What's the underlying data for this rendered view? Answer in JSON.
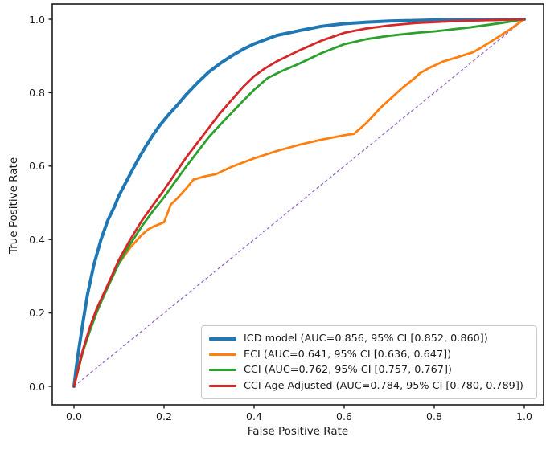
{
  "chart_data": {
    "type": "line",
    "title": "",
    "xlabel": "False Positive Rate",
    "ylabel": "True Positive Rate",
    "xlim": [
      -0.05,
      1.05
    ],
    "ylim": [
      -0.05,
      1.05
    ],
    "grid": false,
    "legend_position": "lower right",
    "x_ticks": [
      0.0,
      0.2,
      0.4,
      0.6,
      0.8,
      1.0
    ],
    "y_ticks": [
      0.0,
      0.2,
      0.4,
      0.6,
      0.8,
      1.0
    ],
    "x_tick_labels": [
      "0.0",
      "0.2",
      "0.4",
      "0.6",
      "0.8",
      "1.0"
    ],
    "y_tick_labels": [
      "0.0",
      "0.2",
      "0.4",
      "0.6",
      "0.8",
      "1.0"
    ],
    "series": [
      {
        "name": "ICD model",
        "label": "ICD model (AUC=0.856, 95% CI [0.852, 0.860])",
        "auc": 0.856,
        "ci": [
          0.852,
          0.86
        ],
        "color": "#1f77b4",
        "line_width": 4,
        "points": [
          [
            0,
            0
          ],
          [
            0.005,
            0.05
          ],
          [
            0.01,
            0.095
          ],
          [
            0.02,
            0.175
          ],
          [
            0.03,
            0.25
          ],
          [
            0.044,
            0.33
          ],
          [
            0.06,
            0.4
          ],
          [
            0.075,
            0.452
          ],
          [
            0.09,
            0.49
          ],
          [
            0.1,
            0.52
          ],
          [
            0.115,
            0.555
          ],
          [
            0.13,
            0.59
          ],
          [
            0.145,
            0.624
          ],
          [
            0.16,
            0.655
          ],
          [
            0.175,
            0.684
          ],
          [
            0.19,
            0.71
          ],
          [
            0.21,
            0.74
          ],
          [
            0.23,
            0.767
          ],
          [
            0.25,
            0.796
          ],
          [
            0.275,
            0.828
          ],
          [
            0.3,
            0.857
          ],
          [
            0.325,
            0.88
          ],
          [
            0.35,
            0.9
          ],
          [
            0.375,
            0.918
          ],
          [
            0.4,
            0.933
          ],
          [
            0.45,
            0.956
          ],
          [
            0.5,
            0.969
          ],
          [
            0.55,
            0.981
          ],
          [
            0.6,
            0.988
          ],
          [
            0.65,
            0.992
          ],
          [
            0.7,
            0.995
          ],
          [
            0.8,
            0.998
          ],
          [
            0.9,
            0.999
          ],
          [
            1,
            1
          ]
        ]
      },
      {
        "name": "ECI",
        "label": "ECI (AUC=0.641, 95% CI [0.636, 0.647])",
        "auc": 0.641,
        "ci": [
          0.636,
          0.647
        ],
        "color": "#ff7f0e",
        "line_width": 2.8,
        "points": [
          [
            0,
            0
          ],
          [
            0.01,
            0.05
          ],
          [
            0.02,
            0.1
          ],
          [
            0.035,
            0.152
          ],
          [
            0.05,
            0.2
          ],
          [
            0.065,
            0.245
          ],
          [
            0.08,
            0.29
          ],
          [
            0.1,
            0.335
          ],
          [
            0.125,
            0.378
          ],
          [
            0.15,
            0.412
          ],
          [
            0.165,
            0.428
          ],
          [
            0.18,
            0.437
          ],
          [
            0.2,
            0.447
          ],
          [
            0.215,
            0.495
          ],
          [
            0.23,
            0.513
          ],
          [
            0.25,
            0.54
          ],
          [
            0.265,
            0.563
          ],
          [
            0.29,
            0.572
          ],
          [
            0.315,
            0.578
          ],
          [
            0.35,
            0.598
          ],
          [
            0.4,
            0.621
          ],
          [
            0.45,
            0.641
          ],
          [
            0.5,
            0.658
          ],
          [
            0.55,
            0.672
          ],
          [
            0.6,
            0.684
          ],
          [
            0.622,
            0.688
          ],
          [
            0.65,
            0.718
          ],
          [
            0.68,
            0.758
          ],
          [
            0.705,
            0.786
          ],
          [
            0.73,
            0.814
          ],
          [
            0.755,
            0.838
          ],
          [
            0.768,
            0.853
          ],
          [
            0.79,
            0.868
          ],
          [
            0.82,
            0.885
          ],
          [
            0.85,
            0.896
          ],
          [
            0.886,
            0.91
          ],
          [
            0.91,
            0.927
          ],
          [
            0.94,
            0.95
          ],
          [
            0.97,
            0.974
          ],
          [
            1,
            1
          ]
        ]
      },
      {
        "name": "CCI",
        "label": "CCI (AUC=0.762, 95% CI [0.757, 0.767])",
        "auc": 0.762,
        "ci": [
          0.757,
          0.767
        ],
        "color": "#2ca02c",
        "line_width": 2.8,
        "points": [
          [
            0,
            0
          ],
          [
            0.01,
            0.048
          ],
          [
            0.02,
            0.095
          ],
          [
            0.035,
            0.15
          ],
          [
            0.05,
            0.2
          ],
          [
            0.065,
            0.243
          ],
          [
            0.08,
            0.283
          ],
          [
            0.1,
            0.335
          ],
          [
            0.125,
            0.388
          ],
          [
            0.15,
            0.435
          ],
          [
            0.175,
            0.477
          ],
          [
            0.2,
            0.515
          ],
          [
            0.225,
            0.558
          ],
          [
            0.25,
            0.6
          ],
          [
            0.275,
            0.64
          ],
          [
            0.3,
            0.68
          ],
          [
            0.325,
            0.713
          ],
          [
            0.35,
            0.745
          ],
          [
            0.375,
            0.777
          ],
          [
            0.4,
            0.808
          ],
          [
            0.43,
            0.84
          ],
          [
            0.46,
            0.858
          ],
          [
            0.5,
            0.879
          ],
          [
            0.55,
            0.908
          ],
          [
            0.6,
            0.932
          ],
          [
            0.65,
            0.946
          ],
          [
            0.7,
            0.955
          ],
          [
            0.76,
            0.963
          ],
          [
            0.8,
            0.967
          ],
          [
            0.88,
            0.978
          ],
          [
            0.95,
            0.99
          ],
          [
            1,
            1
          ]
        ]
      },
      {
        "name": "CCI Age Adjusted",
        "label": "CCI Age Adjusted (AUC=0.784, 95% CI [0.780, 0.789])",
        "auc": 0.784,
        "ci": [
          0.78,
          0.789
        ],
        "color": "#d62728",
        "line_width": 2.8,
        "points": [
          [
            0,
            0
          ],
          [
            0.01,
            0.05
          ],
          [
            0.02,
            0.1
          ],
          [
            0.035,
            0.16
          ],
          [
            0.05,
            0.21
          ],
          [
            0.065,
            0.25
          ],
          [
            0.08,
            0.29
          ],
          [
            0.1,
            0.345
          ],
          [
            0.125,
            0.4
          ],
          [
            0.15,
            0.45
          ],
          [
            0.175,
            0.493
          ],
          [
            0.2,
            0.535
          ],
          [
            0.225,
            0.58
          ],
          [
            0.25,
            0.625
          ],
          [
            0.275,
            0.665
          ],
          [
            0.3,
            0.705
          ],
          [
            0.325,
            0.745
          ],
          [
            0.35,
            0.78
          ],
          [
            0.375,
            0.815
          ],
          [
            0.4,
            0.845
          ],
          [
            0.425,
            0.867
          ],
          [
            0.45,
            0.885
          ],
          [
            0.475,
            0.9
          ],
          [
            0.5,
            0.915
          ],
          [
            0.55,
            0.942
          ],
          [
            0.6,
            0.963
          ],
          [
            0.65,
            0.975
          ],
          [
            0.7,
            0.983
          ],
          [
            0.76,
            0.99
          ],
          [
            0.85,
            0.995
          ],
          [
            0.93,
            0.998
          ],
          [
            1,
            1
          ]
        ]
      }
    ],
    "reference_line": {
      "name": "chance diagonal",
      "color": "#9467bd",
      "style": "dashed",
      "points": [
        [
          0,
          0
        ],
        [
          1,
          1
        ]
      ]
    }
  }
}
